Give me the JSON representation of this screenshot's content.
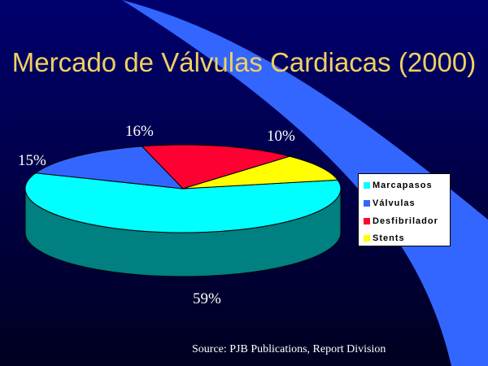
{
  "slide": {
    "title": "Mercado de Válvulas Cardiacas (2000)",
    "source": "Source:  PJB Publications, Report Division"
  },
  "colors": {
    "background_top": "#00006E",
    "background_bottom": "#000020",
    "swoosh": "#3366FF",
    "title": "#F0D060"
  },
  "chart_data": {
    "type": "pie",
    "categories": [
      "Marcapasos",
      "Válvulas",
      "Desfibrilador",
      "Stents"
    ],
    "values": [
      59,
      15,
      16,
      10
    ],
    "data_labels": [
      "59%",
      "15%",
      "16%",
      "10%"
    ],
    "colors": [
      "#00FFFF",
      "#3366FF",
      "#FF0033",
      "#FFFF00"
    ],
    "title": "",
    "legend_placement": "right",
    "style": "3d"
  }
}
